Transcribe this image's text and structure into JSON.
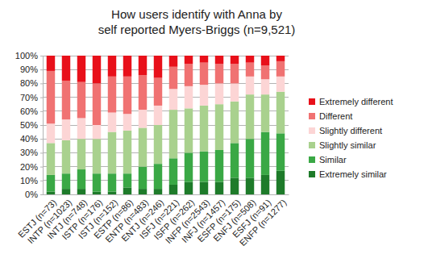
{
  "chart_data": {
    "type": "bar",
    "stacked": true,
    "grid": true,
    "legend": "right",
    "title": [
      "How users identify with Anna by",
      "self reported Myers-Briggs (n=9,521)"
    ],
    "categories": [
      "ESTJ (n=73)",
      "INTP (n=1023)",
      "INTJ (n=748)",
      "ISTP (n=176)",
      "ISTJ (n=152)",
      "ESTP (n=86)",
      "ENTP (n=483)",
      "ENTJ (n=246)",
      "ISFJ (n=221)",
      "ISFP (n=262)",
      "INFP (n=2543)",
      "INFJ (n=1457)",
      "ESFP (n=175)",
      "ENFJ (n=508)",
      "ESFJ (n=91)",
      "ENFP (n=1277)"
    ],
    "series": [
      {
        "name": "Extremely similar",
        "color": "#1e7b2a",
        "values": [
          2,
          4,
          4,
          2,
          2,
          5,
          4,
          4,
          7,
          9,
          9,
          9,
          12,
          12,
          14,
          17
        ]
      },
      {
        "name": "Similar",
        "color": "#3aa845",
        "values": [
          12,
          11,
          14,
          13,
          13,
          10,
          16,
          18,
          19,
          21,
          22,
          23,
          25,
          28,
          31,
          27
        ]
      },
      {
        "name": "Slightly similar",
        "color": "#a9d18e",
        "values": [
          23,
          24,
          22,
          25,
          30,
          31,
          28,
          28,
          35,
          32,
          33,
          33,
          30,
          32,
          27,
          30
        ]
      },
      {
        "name": "Slightly different",
        "color": "#fcd5d5",
        "values": [
          14,
          15,
          15,
          10,
          14,
          12,
          13,
          14,
          15,
          16,
          15,
          15,
          13,
          13,
          11,
          11
        ]
      },
      {
        "name": "Different",
        "color": "#f07272",
        "values": [
          38,
          28,
          26,
          30,
          26,
          27,
          25,
          20,
          16,
          16,
          16,
          14,
          14,
          10,
          10,
          11
        ]
      },
      {
        "name": "Extremely different",
        "color": "#e8101a",
        "values": [
          11,
          18,
          19,
          20,
          15,
          15,
          14,
          16,
          8,
          6,
          5,
          6,
          6,
          5,
          7,
          4
        ]
      }
    ],
    "ylim": [
      0,
      100
    ],
    "yticks": [
      {
        "value": 0,
        "label": "0%"
      },
      {
        "value": 10,
        "label": "10%"
      },
      {
        "value": 20,
        "label": "20%"
      },
      {
        "value": 30,
        "label": "30%"
      },
      {
        "value": 40,
        "label": "40%"
      },
      {
        "value": 50,
        "label": "50%"
      },
      {
        "value": 60,
        "label": "60%"
      },
      {
        "value": 70,
        "label": "70%"
      },
      {
        "value": 80,
        "label": "80%"
      },
      {
        "value": 90,
        "label": "90%"
      },
      {
        "value": 100,
        "label": "100%"
      }
    ]
  }
}
